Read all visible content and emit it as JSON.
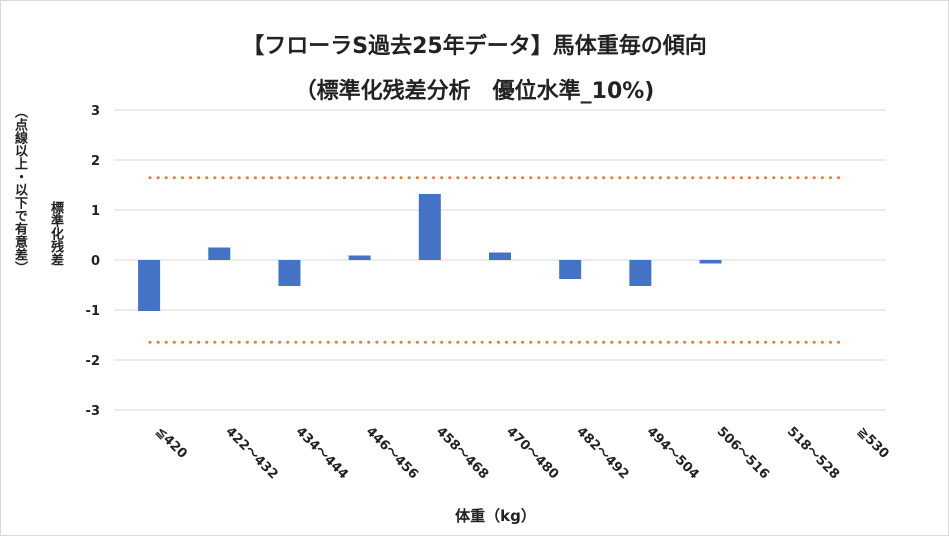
{
  "title_line1": "【フローラS過去25年データ】馬体重毎の傾向",
  "title_line2": "（標準化残差分析　優位水準_10%)",
  "ylabel_main": "標準化残差",
  "ylabel_note": "（点線以上・以下で有意差）",
  "xlabel": "体重（kg）",
  "colors": {
    "bar": "#4472c4",
    "threshold": "#ed7d31",
    "grid": "#d9d9d9"
  },
  "chart_data": {
    "type": "bar",
    "title": "【フローラS過去25年データ】馬体重毎の傾向 （標準化残差分析　優位水準_10%)",
    "xlabel": "体重（kg）",
    "ylabel": "標準化残差",
    "categories": [
      "≦420",
      "422～432",
      "434～444",
      "446～456",
      "458～468",
      "470～480",
      "482～492",
      "494～504",
      "506～516",
      "518～528",
      "≧530"
    ],
    "values": [
      -1.02,
      0.25,
      -0.52,
      0.09,
      1.32,
      0.15,
      -0.38,
      -0.52,
      -0.07,
      0,
      0
    ],
    "y_ticks": [
      "3",
      "2",
      "1",
      "0",
      "-1",
      "-2",
      "-3"
    ],
    "ylim": [
      -3,
      3
    ],
    "thresholds": [
      1.645,
      -1.645
    ],
    "grid": true,
    "legend": "none"
  }
}
